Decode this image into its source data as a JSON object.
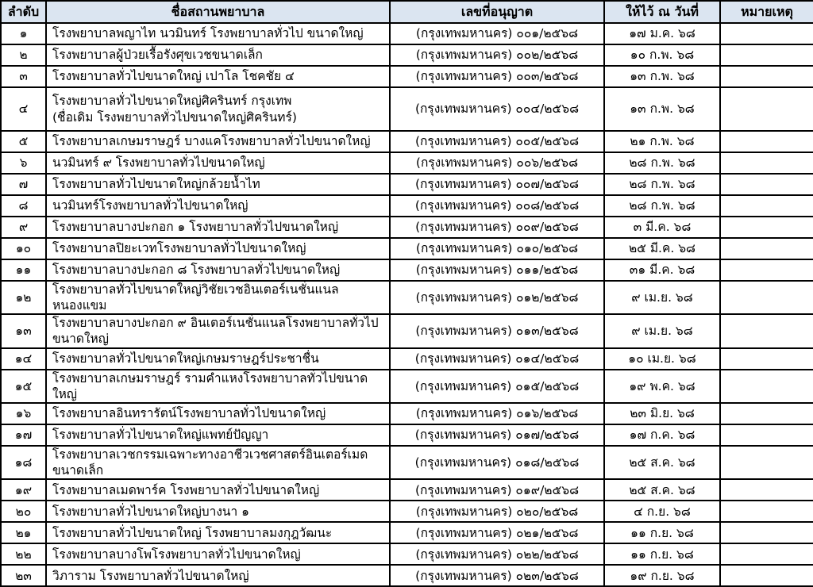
{
  "colors": {
    "header_bg": "#dbe5f1",
    "border": "#000000",
    "row_bg": "#ffffff"
  },
  "table": {
    "columns": [
      {
        "key": "no",
        "label": "ลำดับ"
      },
      {
        "key": "name",
        "label": "ชื่อสถานพยาบาล"
      },
      {
        "key": "license",
        "label": "เลขที่อนุญาต"
      },
      {
        "key": "date",
        "label": "ให้ไว้ ณ วันที่"
      },
      {
        "key": "note",
        "label": "หมายเหตุ"
      }
    ],
    "rows": [
      {
        "no": "๑",
        "name": "โรงพยาบาลพญาไท นวมินทร์ โรงพยาบาลทั่วไป ขนาดใหญ่",
        "license": "(กรุงเทพมหานคร) ๐๐๑/๒๕๖๘",
        "date": "๑๗ ม.ค. ๖๘",
        "note": ""
      },
      {
        "no": "๒",
        "name": "โรงพยาบาลผู้ป่วยเรื้อรังศุขเวชขนาดเล็ก",
        "license": "(กรุงเทพมหานคร) ๐๐๒/๒๕๖๘",
        "date": "๑๐ ก.พ. ๖๘",
        "note": ""
      },
      {
        "no": "๓",
        "name": "โรงพยาบาลทั่วไปขนาดใหญ่ เปาโล โชคชัย ๔",
        "license": "(กรุงเทพมหานคร) ๐๐๓/๒๕๖๘",
        "date": "๑๓ ก.พ. ๖๘",
        "note": ""
      },
      {
        "no": "๔",
        "name": "โรงพยาบาลทั่วไปขนาดใหญ่ศิครินทร์ กรุงเทพ",
        "name_line2": "(ชื่อเดิม โรงพยาบาลทั่วไปขนาดใหญ่ศิครินทร์)",
        "license": "(กรุงเทพมหานคร) ๐๐๔/๒๕๖๘",
        "date": "๑๓ ก.พ. ๖๘",
        "note": ""
      },
      {
        "no": "๕",
        "name": "โรงพยาบาลเกษมราษฎร์ บางแคโรงพยาบาลทั่วไปขนาดใหญ่",
        "license": "(กรุงเทพมหานคร) ๐๐๕/๒๕๖๘",
        "date": "๒๑ ก.พ. ๖๘",
        "note": ""
      },
      {
        "no": "๖",
        "name": "นวมินทร์ ๙ โรงพยาบาลทั่วไปขนาดใหญ่",
        "license": "(กรุงเทพมหานคร) ๐๐๖/๒๕๖๘",
        "date": "๒๘ ก.พ. ๖๘",
        "note": ""
      },
      {
        "no": "๗",
        "name": "โรงพยาบาลทั่วไปขนาดใหญ่กล้วยน้ำไท",
        "license": "(กรุงเทพมหานคร) ๐๐๗/๒๕๖๘",
        "date": "๒๘ ก.พ. ๖๘",
        "note": ""
      },
      {
        "no": "๘",
        "name": "นวมินทร์โรงพยาบาลทั่วไปขนาดใหญ่",
        "license": "(กรุงเทพมหานคร) ๐๐๘/๒๕๖๘",
        "date": "๒๘ ก.พ. ๖๘",
        "note": ""
      },
      {
        "no": "๙",
        "name": "โรงพยาบาลบางปะกอก ๑ โรงพยาบาลทั่วไปขนาดใหญ่",
        "license": "(กรุงเทพมหานคร) ๐๐๙/๒๕๖๘",
        "date": "๓ มี.ค. ๖๘",
        "note": ""
      },
      {
        "no": "๑๐",
        "name": "โรงพยาบาลปิยะเวทโรงพยาบาลทั่วไปขนาดใหญ่",
        "license": "(กรุงเทพมหานคร) ๐๑๐/๒๕๖๘",
        "date": "๒๕ มี.ค. ๖๘",
        "note": ""
      },
      {
        "no": "๑๑",
        "name": "โรงพยาบาลบางปะกอก ๘ โรงพยาบาลทั่วไปขนาดใหญ่",
        "license": "(กรุงเทพมหานคร) ๐๑๑/๒๕๖๘",
        "date": "๓๑ มี.ค. ๖๘",
        "note": ""
      },
      {
        "no": "๑๒",
        "name": "โรงพยาบาลทั่วไปขนาดใหญ่วิชัยเวชอินเตอร์เนชั่นแนล หนองแขม",
        "license": "(กรุงเทพมหานคร) ๐๑๒/๒๕๖๘",
        "date": "๙ เม.ย. ๖๘",
        "note": ""
      },
      {
        "no": "๑๓",
        "name": "โรงพยาบาลบางปะกอก ๙ อินเตอร์เนชั่นแนลโรงพยาบาลทั่วไปขนาดใหญ่",
        "license": "(กรุงเทพมหานคร) ๐๑๓/๒๕๖๘",
        "date": "๙ เม.ย. ๖๘",
        "note": ""
      },
      {
        "no": "๑๔",
        "name": "โรงพยาบาลทั่วไปขนาดใหญ่เกษมราษฎร์ประชาชื่น",
        "license": "(กรุงเทพมหานคร) ๐๑๔/๒๕๖๘",
        "date": "๑๐ เม.ย. ๖๘",
        "note": ""
      },
      {
        "no": "๑๕",
        "name": "โรงพยาบาลเกษมราษฎร์ รามคำแหงโรงพยาบาลทั่วไปขนาดใหญ่",
        "license": "(กรุงเทพมหานคร) ๐๑๕/๒๕๖๘",
        "date": "๑๙ พ.ค. ๖๘",
        "note": ""
      },
      {
        "no": "๑๖",
        "name": "โรงพยาบาลอินทรารัตน์โรงพยาบาลทั่วไปขนาดใหญ่",
        "license": "(กรุงเทพมหานคร) ๐๑๖/๒๕๖๘",
        "date": "๒๓ มิ.ย. ๖๘",
        "note": ""
      },
      {
        "no": "๑๗",
        "name": "โรงพยาบาลทั่วไปขนาดใหญ่แพทย์ปัญญา",
        "license": "(กรุงเทพมหานคร) ๐๑๗/๒๕๖๘",
        "date": "๑๗ ก.ค. ๖๘",
        "note": ""
      },
      {
        "no": "๑๘",
        "name": "โรงพยาบาลเวชกรรมเฉพาะทางอาชีวเวชศาสตร์อินเตอร์เมด ขนาดเล็ก",
        "license": "(กรุงเทพมหานคร) ๐๑๘/๒๕๖๘",
        "date": "๒๕ ส.ค. ๖๘",
        "note": ""
      },
      {
        "no": "๑๙",
        "name": "โรงพยาบาลเมดพาร์ค โรงพยาบาลทั่วไปขนาดใหญ่",
        "license": "(กรุงเทพมหานคร) ๐๑๙/๒๕๖๘",
        "date": "๒๕ ส.ค. ๖๘",
        "note": ""
      },
      {
        "no": "๒๐",
        "name": "โรงพยาบาลทั่วไปขนาดใหญ่บางนา ๑",
        "license": "(กรุงเทพมหานคร) ๐๒๐/๒๕๖๘",
        "date": "๔ ก.ย. ๖๘",
        "note": ""
      },
      {
        "no": "๒๑",
        "name": "โรงพยาบาลทั่วไปขนาดใหญ่ โรงพยาบาลมงกุฎวัฒนะ",
        "license": "(กรุงเทพมหานคร) ๐๒๑/๒๕๖๘",
        "date": "๑๑ ก.ย. ๖๘",
        "note": ""
      },
      {
        "no": "๒๒",
        "name": "โรงพยาบาลบางโพโรงพยาบาลทั่วไปขนาดใหญ่",
        "license": "(กรุงเทพมหานคร) ๐๒๒/๒๕๖๘",
        "date": "๑๑ ก.ย. ๖๘",
        "note": ""
      },
      {
        "no": "๒๓",
        "name": "วิภาราม โรงพยาบาลทั่วไปขนาดใหญ่",
        "license": "(กรุงเทพมหานคร) ๐๒๓/๒๕๖๘",
        "date": "๑๙ ก.ย. ๖๘",
        "note": ""
      }
    ]
  }
}
